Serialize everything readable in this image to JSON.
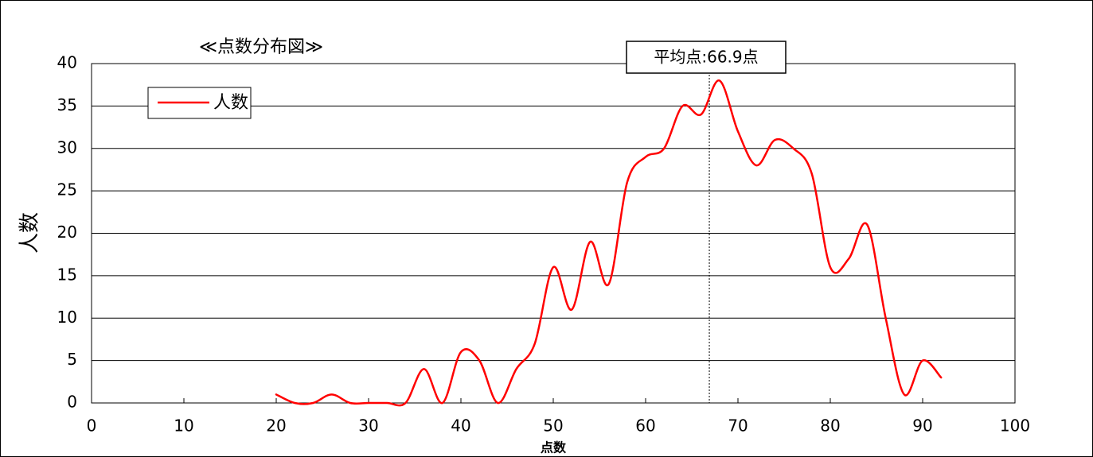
{
  "chart_data": {
    "type": "line",
    "title": "≪点数分布図≫",
    "xlabel": "点数",
    "ylabel": "人数",
    "xlim": [
      0,
      100
    ],
    "ylim": [
      0,
      40
    ],
    "x_ticks": [
      0,
      10,
      20,
      30,
      40,
      50,
      60,
      70,
      80,
      90,
      100
    ],
    "y_ticks": [
      0,
      5,
      10,
      15,
      20,
      25,
      30,
      35,
      40
    ],
    "grid": "horizontal",
    "legend_position": "top-left",
    "series": [
      {
        "name": "人数",
        "color": "#ff0000",
        "smooth": true,
        "x": [
          20,
          22,
          24,
          26,
          28,
          30,
          32,
          34,
          36,
          38,
          40,
          42,
          44,
          46,
          48,
          50,
          52,
          54,
          56,
          58,
          60,
          62,
          64,
          66,
          68,
          70,
          72,
          74,
          76,
          78,
          80,
          82,
          84,
          86,
          88,
          90,
          92
        ],
        "y": [
          1,
          0,
          0,
          1,
          0,
          0,
          0,
          0,
          4,
          0,
          6,
          5,
          0,
          4,
          7,
          16,
          11,
          19,
          14,
          26,
          29,
          30,
          35,
          34,
          38,
          32,
          28,
          31,
          30,
          27,
          16,
          17,
          21,
          10,
          1,
          5,
          3
        ]
      }
    ],
    "mean_line": {
      "value": 66.9,
      "label": "平均点:66.9点",
      "style": "dotted",
      "color": "#000000"
    }
  }
}
